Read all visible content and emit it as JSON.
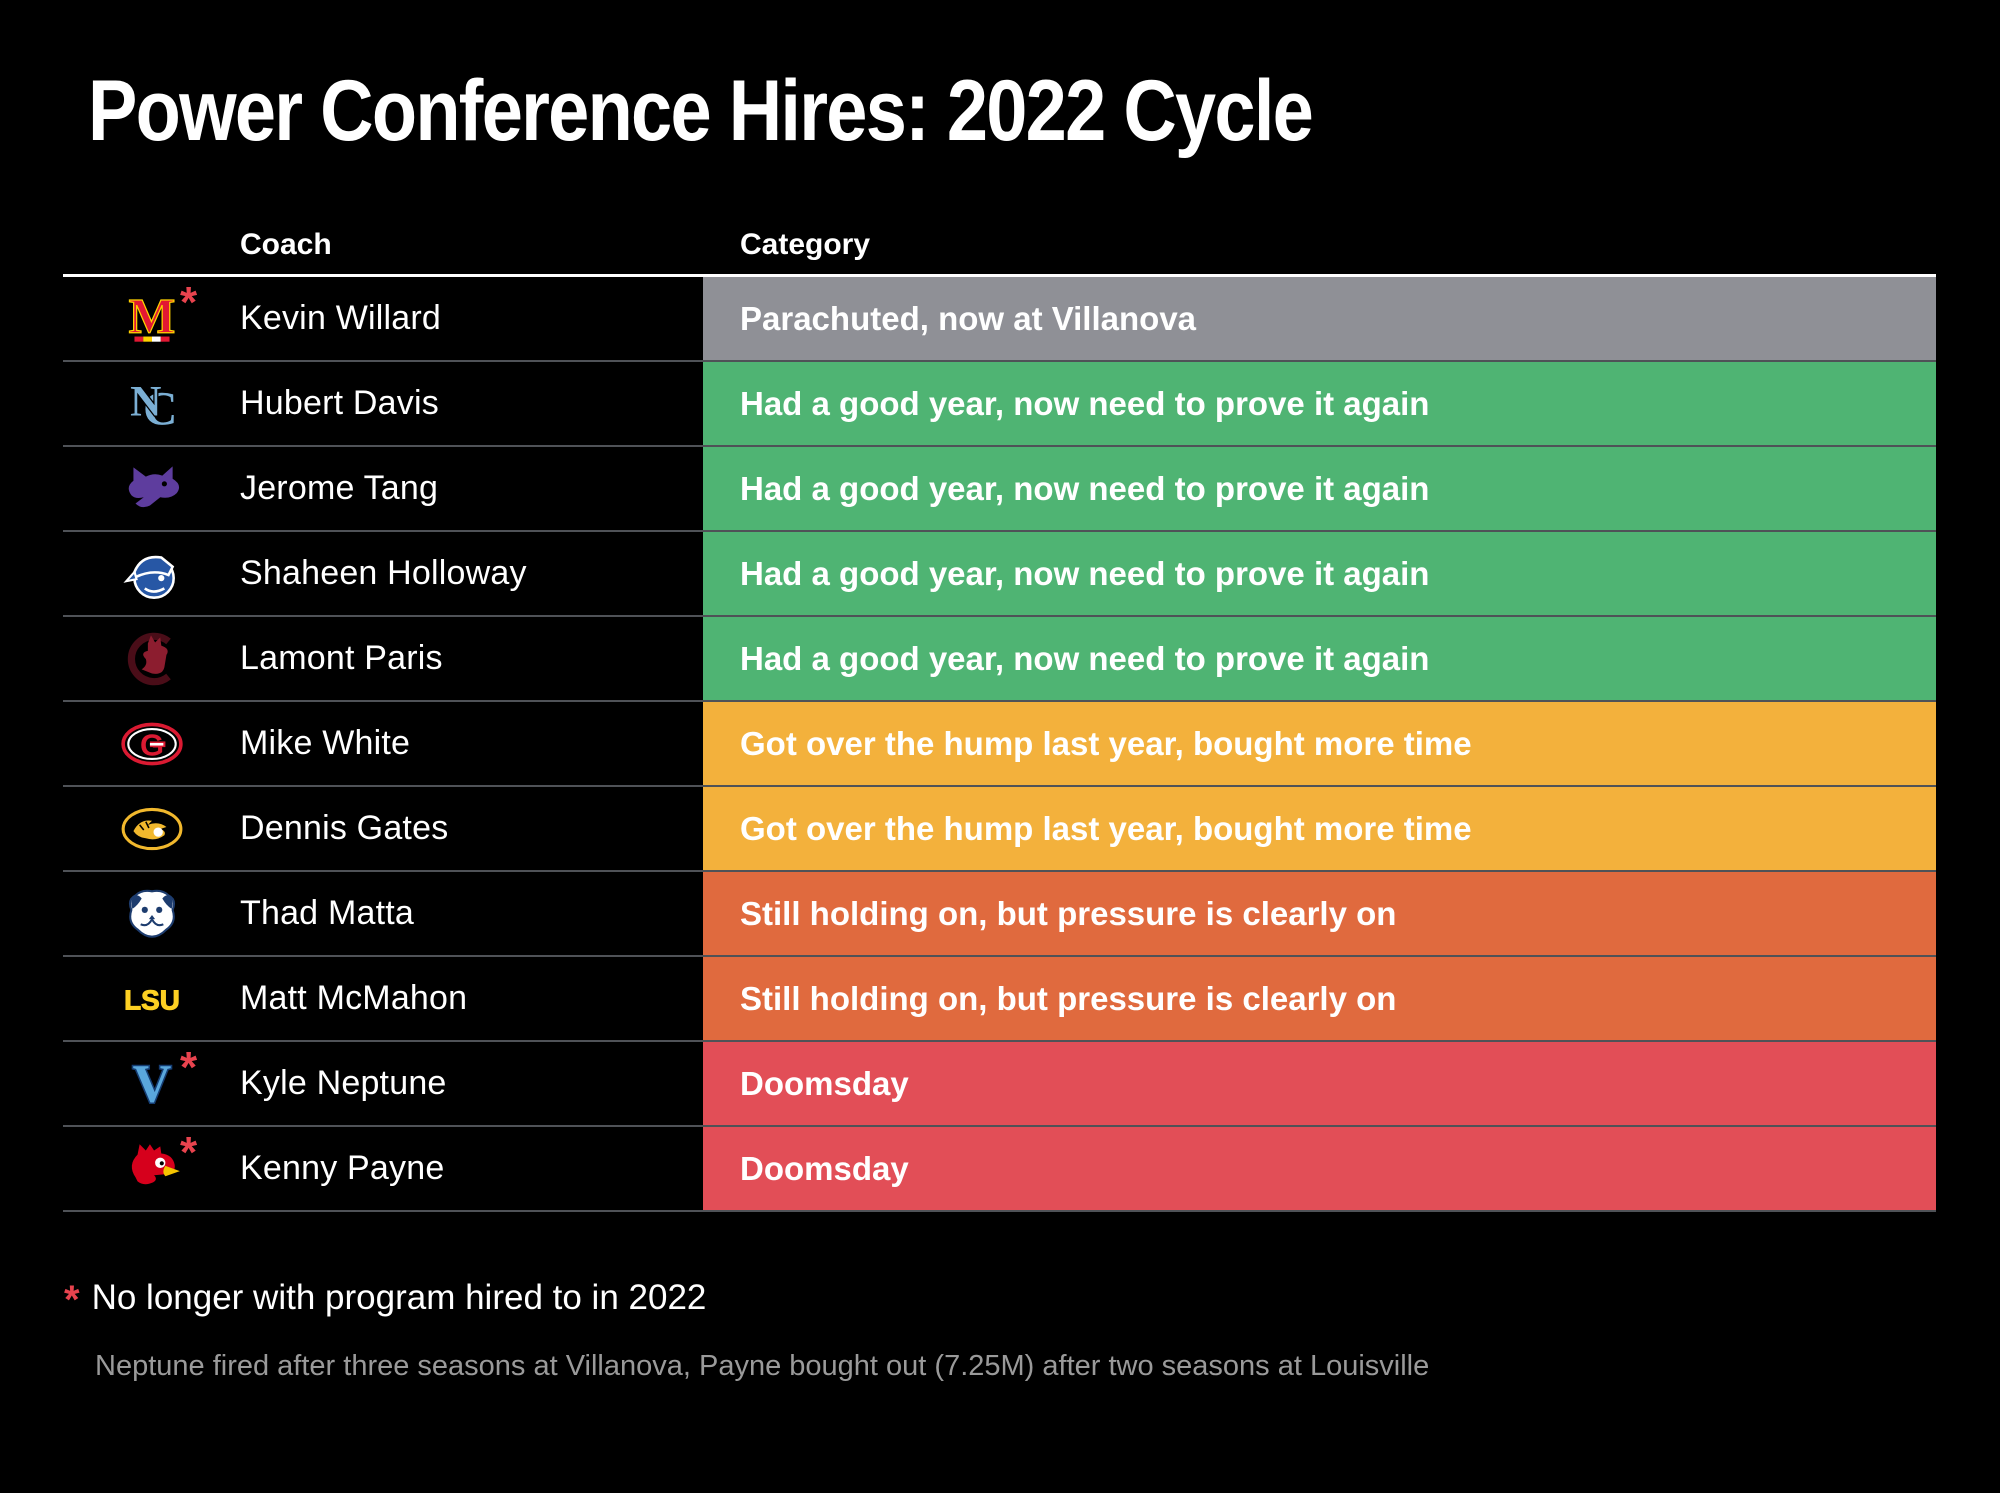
{
  "chart_data": {
    "type": "table",
    "title": "Power Conference Hires: 2022 Cycle",
    "columns": [
      "Coach",
      "Category"
    ],
    "rows": [
      {
        "coach": "Kevin Willard",
        "team": "maryland",
        "logo": "maryland-logo",
        "former": true,
        "category": "Parachuted, now at Villanova",
        "color": "#8f9096"
      },
      {
        "coach": "Hubert Davis",
        "team": "north-carolina",
        "logo": "north-carolina-logo",
        "former": false,
        "category": "Had a good year, now need to prove it again",
        "color": "#4fb473"
      },
      {
        "coach": "Jerome Tang",
        "team": "kansas-state",
        "logo": "kansas-state-logo",
        "former": false,
        "category": "Had a good year, now need to prove it again",
        "color": "#4fb473"
      },
      {
        "coach": "Shaheen Holloway",
        "team": "seton-hall",
        "logo": "seton-hall-logo",
        "former": false,
        "category": "Had a good year, now need to prove it again",
        "color": "#4fb473"
      },
      {
        "coach": "Lamont Paris",
        "team": "south-carolina",
        "logo": "south-carolina-logo",
        "former": false,
        "category": "Had a good year, now need to prove it again",
        "color": "#4fb473"
      },
      {
        "coach": "Mike White",
        "team": "georgia",
        "logo": "georgia-logo",
        "former": false,
        "category": "Got over the hump last year, bought more time",
        "color": "#f3b13c"
      },
      {
        "coach": "Dennis Gates",
        "team": "missouri",
        "logo": "missouri-logo",
        "former": false,
        "category": "Got over the hump last year, bought more time",
        "color": "#f3b13c"
      },
      {
        "coach": "Thad Matta",
        "team": "butler",
        "logo": "butler-logo",
        "former": false,
        "category": "Still holding on, but pressure is clearly on",
        "color": "#e06a3e"
      },
      {
        "coach": "Matt McMahon",
        "team": "lsu",
        "logo": "lsu-logo",
        "former": false,
        "category": "Still holding on, but pressure is clearly on",
        "color": "#e06a3e"
      },
      {
        "coach": "Kyle Neptune",
        "team": "villanova",
        "logo": "villanova-logo",
        "former": true,
        "category": "Doomsday",
        "color": "#e24e57"
      },
      {
        "coach": "Kenny Payne",
        "team": "louisville",
        "logo": "louisville-logo",
        "former": true,
        "category": "Doomsday",
        "color": "#e24e57"
      }
    ],
    "legend": {
      "Parachuted, now at Villanova": "#8f9096",
      "Had a good year, now need to prove it again": "#4fb473",
      "Got over the hump last year, bought more time": "#f3b13c",
      "Still holding on, but pressure is clearly on": "#e06a3e",
      "Doomsday": "#e24e57"
    },
    "footnotes": {
      "marker": "*",
      "primary": "No longer with program hired to in 2022",
      "secondary": "Neptune fired after three seasons at Villanova, Payne bought out (7.25M) after two seasons at Louisville"
    },
    "colors": {
      "background": "#000000",
      "asterisk_red": "#e8434e",
      "row_divider": "#4f5257",
      "header_line": "#ffffff",
      "text_white": "#ffffff",
      "footnote_gray": "#9a9a9a"
    },
    "layout_hints": {
      "grid": "row-dividers",
      "legend_position": "none"
    }
  }
}
